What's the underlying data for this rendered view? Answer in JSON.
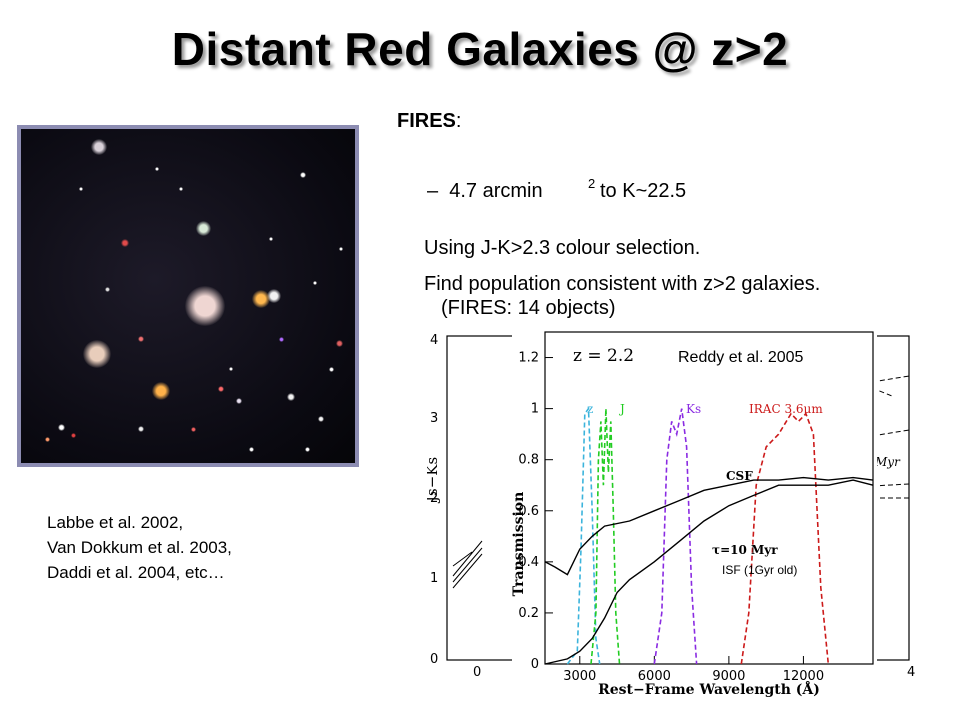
{
  "slide": {
    "title": "Distant Red Galaxies @ z>2",
    "fires": {
      "label": "FIRES",
      "colon": ":",
      "bullet_marker": "–",
      "area_pre": "4.7 arcmin",
      "area_sup": "2",
      "area_post": "to K~22.5",
      "colour_selection": "Using J-K>2.3 colour selection.",
      "population": "Find population consistent with z>2 galaxies.",
      "count": "(FIRES: 14 objects)"
    },
    "references": [
      "Labbe et al. 2002,",
      "Van Dokkum et al. 2003,",
      "Daddi et al. 2004, etc…"
    ]
  },
  "figure": {
    "credit": "Reddy et al. 2005",
    "redshift_label": "z = 2.2",
    "filter_labels": [
      "z",
      "J",
      "Ks",
      "IRAC 3.6μm"
    ],
    "filter_colors": [
      "#3cb4dc",
      "#22cc22",
      "#8a2be2",
      "#cc1a1a"
    ],
    "model_labels": {
      "csf": "CSF",
      "tau": "τ=10 Myr",
      "isf": "ISF (1Gyr old)"
    },
    "back_panel": {
      "ylabel": "Js−Ks",
      "y_ticks": [
        "0",
        "1",
        "2",
        "3",
        "4"
      ],
      "x_ticks": [
        "0",
        "4"
      ],
      "right_label": "Myr"
    }
  },
  "chart_data": {
    "type": "line",
    "xlabel": "Rest−Frame Wavelength (Å)",
    "ylabel": "Transmission",
    "xlim": [
      1600,
      14800
    ],
    "ylim": [
      0,
      1.3
    ],
    "x_ticks": [
      3000,
      6000,
      9000,
      12000
    ],
    "y_ticks": [
      0,
      0.2,
      0.4,
      0.6,
      0.8,
      1,
      1.2
    ],
    "series": [
      {
        "name": "z",
        "dashed": true,
        "color": "#3cb4dc",
        "x": [
          2500,
          2900,
          3050,
          3200,
          3350,
          3500,
          3650,
          3800
        ],
        "y": [
          0,
          0.05,
          0.45,
          0.98,
          1.0,
          0.6,
          0.1,
          0
        ]
      },
      {
        "name": "J",
        "dashed": true,
        "color": "#22cc22",
        "x": [
          3450,
          3650,
          3750,
          3850,
          3950,
          4050,
          4150,
          4250,
          4350,
          4450,
          4600
        ],
        "y": [
          0,
          0.2,
          0.8,
          0.95,
          0.7,
          1.0,
          0.75,
          0.95,
          0.6,
          0.2,
          0
        ]
      },
      {
        "name": "Ks",
        "dashed": true,
        "color": "#8a2be2",
        "x": [
          6000,
          6300,
          6500,
          6700,
          6900,
          7100,
          7300,
          7500,
          7700
        ],
        "y": [
          0,
          0.2,
          0.8,
          0.95,
          0.9,
          1.0,
          0.85,
          0.3,
          0
        ]
      },
      {
        "name": "IRAC 3.6μm",
        "dashed": true,
        "color": "#cc1a1a",
        "x": [
          9500,
          9800,
          10100,
          10500,
          11000,
          11500,
          11800,
          12100,
          12400,
          12700,
          13000
        ],
        "y": [
          0,
          0.2,
          0.7,
          0.85,
          0.9,
          0.98,
          0.95,
          0.98,
          0.9,
          0.3,
          0
        ]
      },
      {
        "name": "CSF",
        "dashed": false,
        "color": "#000000",
        "x": [
          1600,
          2000,
          2500,
          3000,
          3500,
          4000,
          5000,
          6000,
          7000,
          8000,
          9000,
          10000,
          11000,
          12000,
          13000,
          14000,
          14800
        ],
        "y": [
          0.4,
          0.38,
          0.35,
          0.45,
          0.5,
          0.54,
          0.56,
          0.6,
          0.64,
          0.68,
          0.7,
          0.72,
          0.72,
          0.73,
          0.72,
          0.73,
          0.72
        ]
      },
      {
        "name": "ISF (1Gyr old)",
        "dashed": false,
        "color": "#000000",
        "x": [
          1600,
          2500,
          3000,
          3500,
          4000,
          4500,
          5000,
          6000,
          7000,
          8000,
          9000,
          10000,
          11000,
          12000,
          13000,
          14000,
          14800
        ],
        "y": [
          0.0,
          0.02,
          0.05,
          0.1,
          0.18,
          0.28,
          0.33,
          0.4,
          0.48,
          0.56,
          0.62,
          0.66,
          0.7,
          0.7,
          0.7,
          0.72,
          0.7
        ]
      }
    ]
  }
}
